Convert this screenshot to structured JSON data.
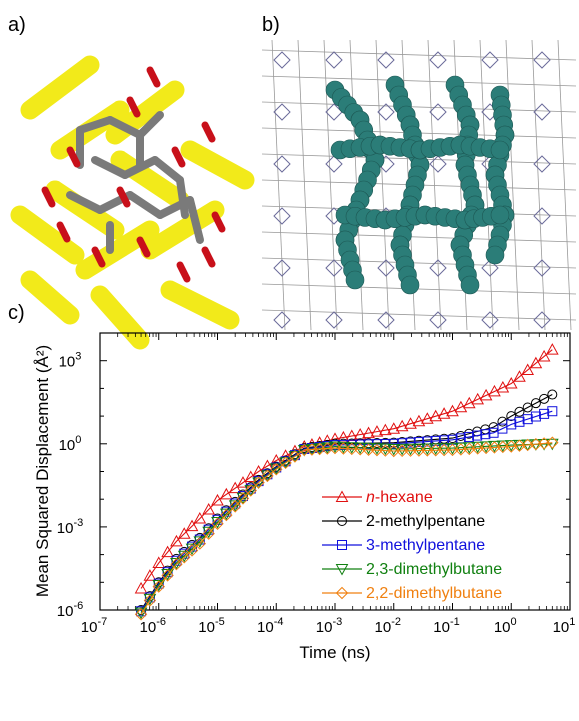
{
  "panels": {
    "a": "a)",
    "b": "b)",
    "c": "c)"
  },
  "colors": {
    "yellow": "#f2ea1a",
    "gray": "#7a7a7a",
    "red": "#c8101a",
    "teal": "#2b7d78",
    "frame": "#8c8c8c",
    "blue": "#2b3bd0"
  },
  "chart_data": {
    "type": "line",
    "xlabel": "Time (ns)",
    "ylabel": "Mean Squared Displacement (Å²)",
    "x_scale": "log",
    "y_scale": "log",
    "xlim": [
      1e-07,
      10
    ],
    "ylim": [
      1e-06,
      10000
    ],
    "x_ticks": [
      {
        "value": 1e-07,
        "base": "10",
        "exp": "-7"
      },
      {
        "value": 1e-06,
        "base": "10",
        "exp": "-6"
      },
      {
        "value": 1e-05,
        "base": "10",
        "exp": "-5"
      },
      {
        "value": 0.0001,
        "base": "10",
        "exp": "-4"
      },
      {
        "value": 0.001,
        "base": "10",
        "exp": "-3"
      },
      {
        "value": 0.01,
        "base": "10",
        "exp": "-2"
      },
      {
        "value": 0.1,
        "base": "10",
        "exp": "-1"
      },
      {
        "value": 1,
        "base": "10",
        "exp": "0"
      },
      {
        "value": 10,
        "base": "10",
        "exp": "1"
      }
    ],
    "y_ticks": [
      {
        "value": 1e-06,
        "base": "10",
        "exp": "-6"
      },
      {
        "value": 0.001,
        "base": "10",
        "exp": "-3"
      },
      {
        "value": 1,
        "base": "10",
        "exp": "0"
      },
      {
        "value": 1000,
        "base": "10",
        "exp": "3"
      }
    ],
    "legend_position": "bottom-right",
    "series": [
      {
        "name": "n-hexane",
        "italic_prefix": "n",
        "label_rest": "-hexane",
        "color": "#e01010",
        "marker": "triangle-up",
        "x": [
          5e-07,
          1e-06,
          2e-06,
          5e-06,
          1e-05,
          2e-05,
          5e-05,
          0.0001,
          0.0003,
          0.001,
          0.01,
          0.1,
          1,
          5
        ],
        "y": [
          6e-06,
          5e-05,
          0.0003,
          0.002,
          0.009,
          0.025,
          0.1,
          0.25,
          0.8,
          1.5,
          3.5,
          15,
          150,
          2500
        ]
      },
      {
        "name": "2-methylpentane",
        "color": "#000000",
        "marker": "circle",
        "x": [
          5e-07,
          1e-06,
          2e-06,
          5e-06,
          1e-05,
          2e-05,
          5e-05,
          0.0001,
          0.0003,
          0.001,
          0.01,
          0.1,
          0.5,
          1,
          5
        ],
        "y": [
          1e-06,
          1e-05,
          7e-05,
          0.0004,
          0.002,
          0.008,
          0.05,
          0.15,
          0.7,
          1.0,
          1.1,
          1.6,
          4,
          10,
          60
        ]
      },
      {
        "name": "3-methylpentane",
        "color": "#1010dd",
        "marker": "square",
        "x": [
          5e-07,
          1e-06,
          2e-06,
          5e-06,
          1e-05,
          2e-05,
          5e-05,
          0.0001,
          0.0003,
          0.001,
          0.01,
          0.1,
          0.5,
          1,
          5
        ],
        "y": [
          9e-07,
          9e-06,
          6e-05,
          0.00035,
          0.0018,
          0.007,
          0.045,
          0.14,
          0.65,
          0.9,
          1.0,
          1.4,
          2.5,
          5,
          15
        ]
      },
      {
        "name": "2,3-dimethylbutane",
        "color": "#108010",
        "marker": "triangle-down",
        "x": [
          5e-07,
          1e-06,
          2e-06,
          5e-06,
          1e-05,
          2e-05,
          5e-05,
          0.0001,
          0.0003,
          0.001,
          0.01,
          0.1,
          1,
          5
        ],
        "y": [
          8e-07,
          8e-06,
          5e-05,
          0.0003,
          0.0015,
          0.006,
          0.04,
          0.13,
          0.6,
          0.8,
          0.65,
          0.7,
          0.9,
          1.0
        ]
      },
      {
        "name": "2,2-dimethylbutane",
        "color": "#f08010",
        "marker": "diamond",
        "x": [
          5e-07,
          1e-06,
          2e-06,
          5e-06,
          1e-05,
          2e-05,
          5e-05,
          0.0001,
          0.0003,
          0.001,
          0.01,
          0.1,
          1,
          5
        ],
        "y": [
          7e-07,
          7e-06,
          4.5e-05,
          0.00025,
          0.0013,
          0.0055,
          0.04,
          0.12,
          0.6,
          0.7,
          0.55,
          0.6,
          0.8,
          1.1
        ]
      }
    ]
  }
}
